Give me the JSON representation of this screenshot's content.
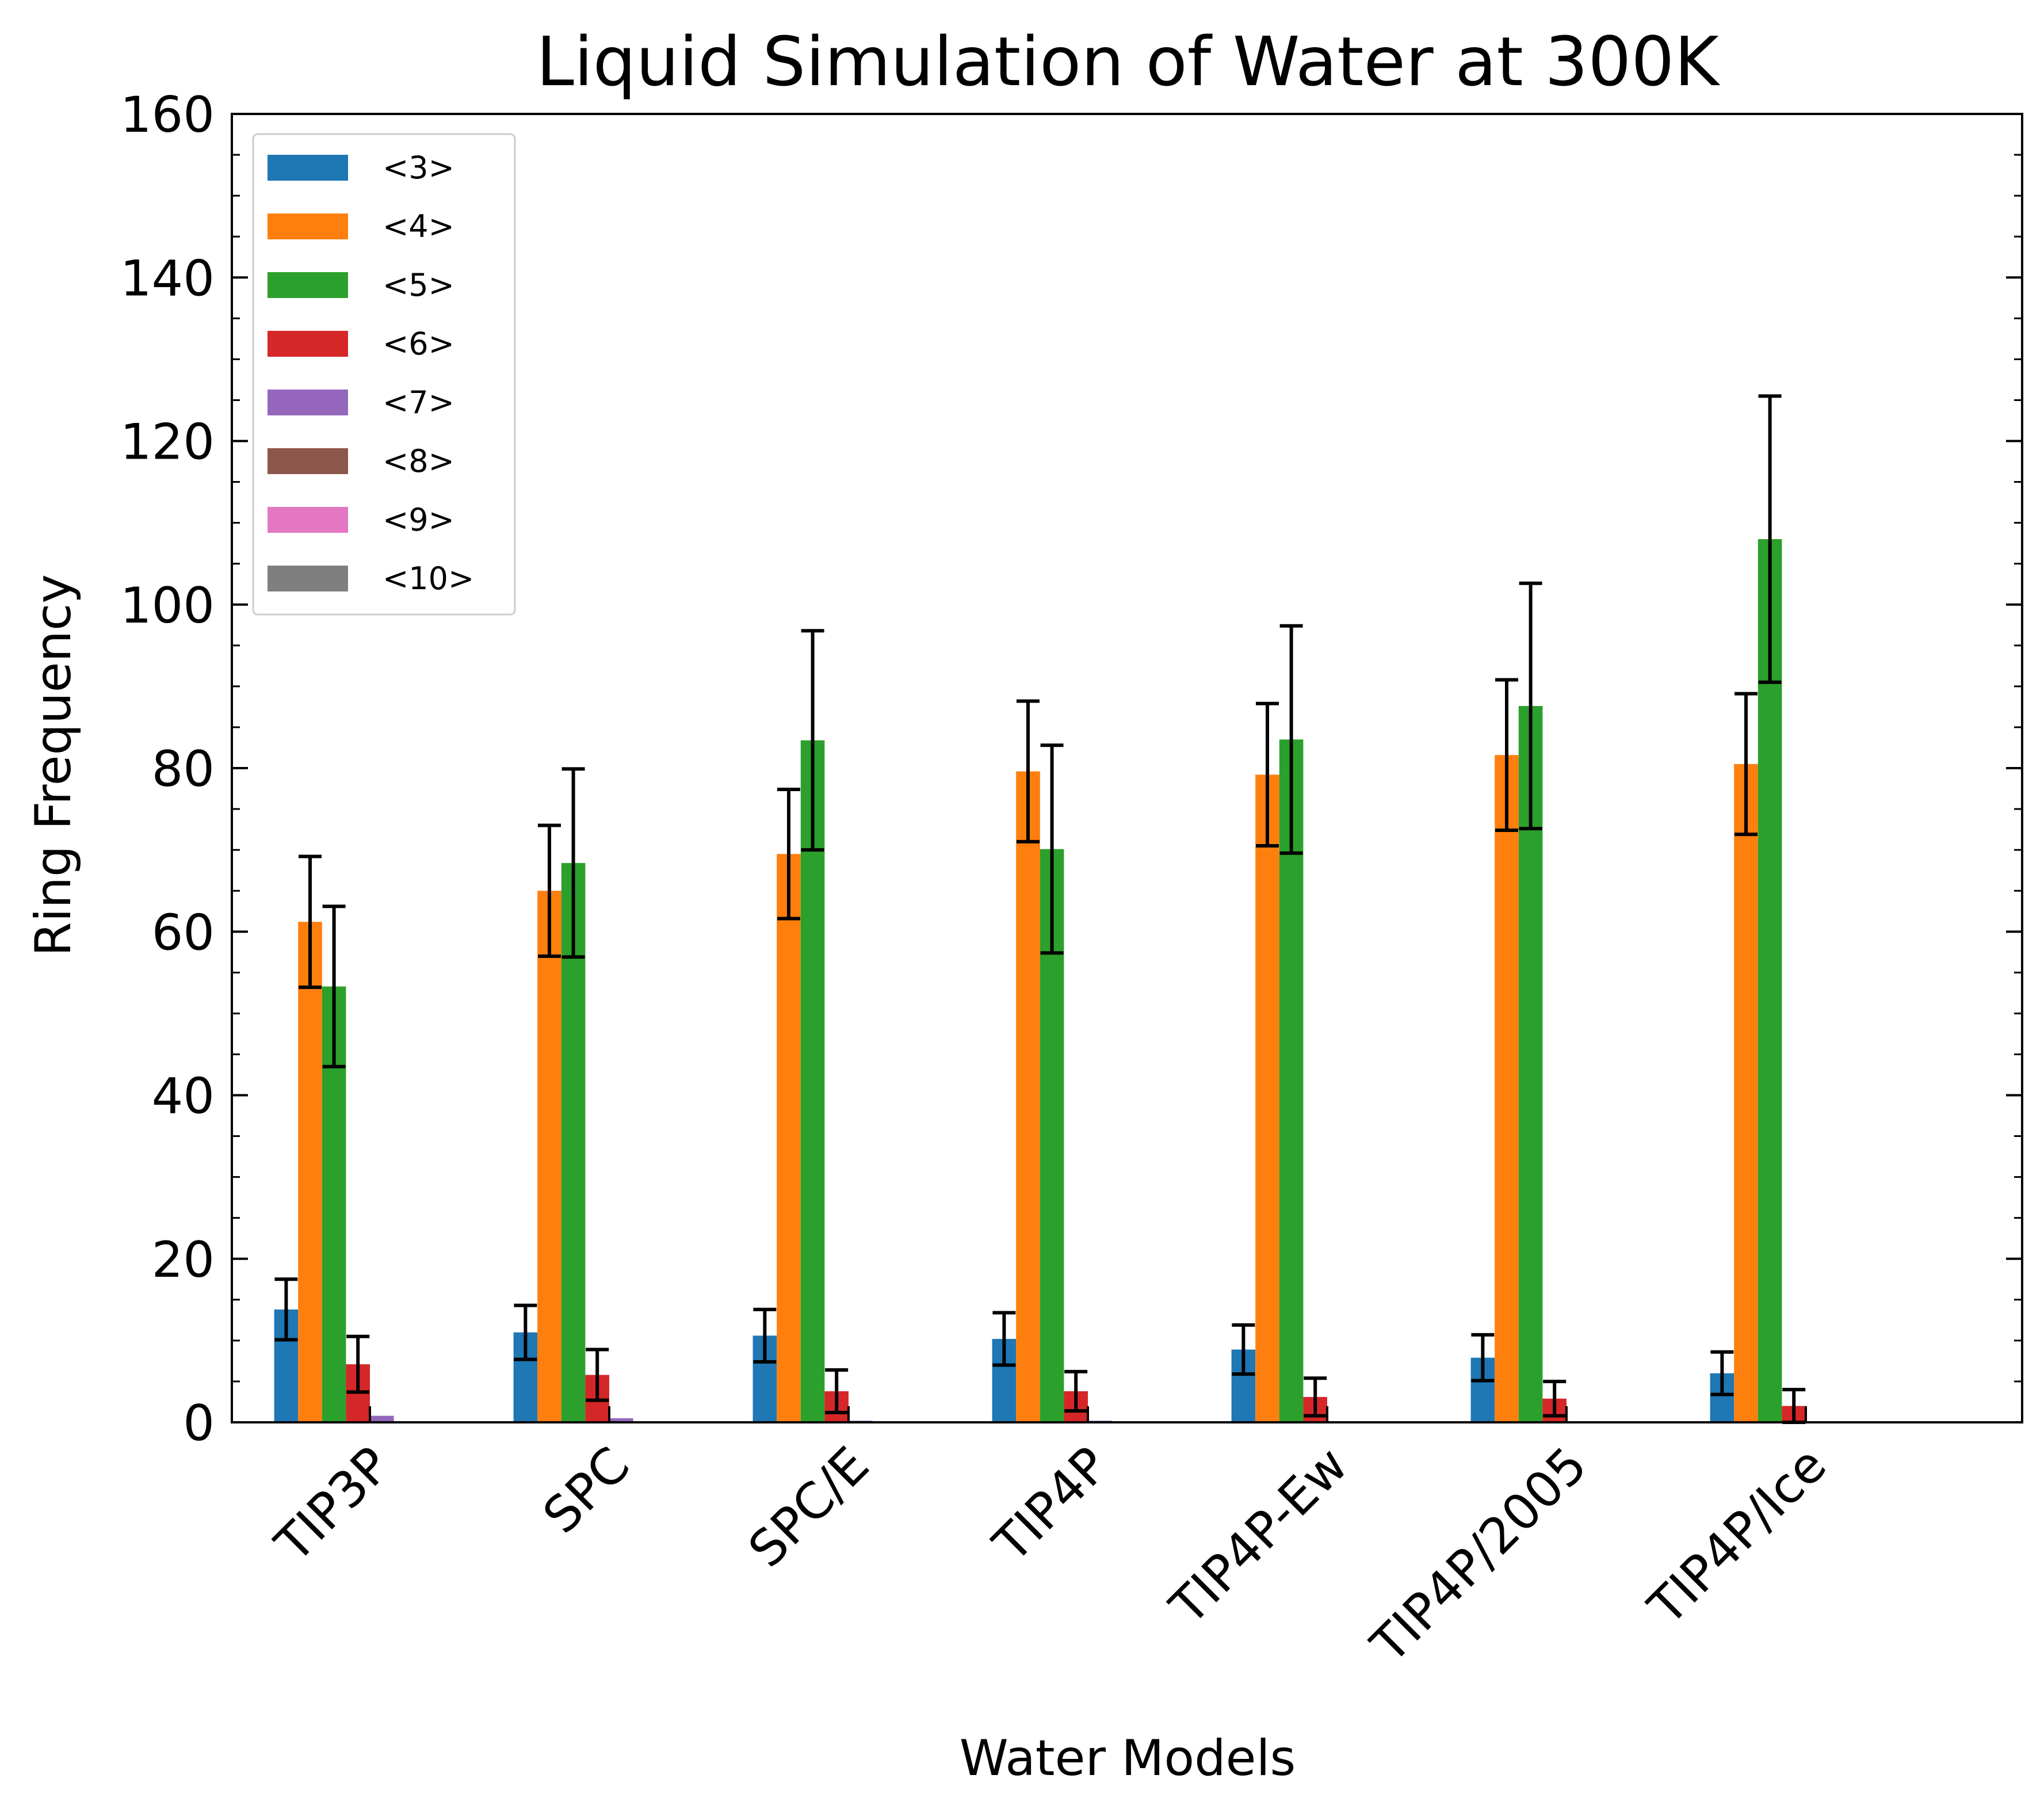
{
  "chart_data": {
    "type": "bar",
    "title": "Liquid Simulation of Water at 300K",
    "xlabel": "Water Models",
    "ylabel": "Ring Frequency",
    "ylim": [
      0,
      160
    ],
    "yticks": [
      0,
      20,
      40,
      60,
      80,
      100,
      120,
      140,
      160
    ],
    "categories": [
      "TIP3P",
      "SPC",
      "SPC/E",
      "TIP4P",
      "TIP4P-Ew",
      "TIP4P/2005",
      "TIP4P/Ice"
    ],
    "legend_position": "top-left",
    "grid": false,
    "series": [
      {
        "name": "<3>",
        "color": "#1f77b4",
        "values": [
          13.8,
          11.0,
          10.6,
          10.2,
          8.9,
          7.9,
          6.0
        ],
        "errors": [
          3.7,
          3.3,
          3.2,
          3.2,
          3.0,
          2.8,
          2.6
        ]
      },
      {
        "name": "<4>",
        "color": "#ff7f0e",
        "values": [
          61.2,
          65.0,
          69.5,
          79.6,
          79.2,
          81.6,
          80.5
        ],
        "errors": [
          8.0,
          8.0,
          7.9,
          8.6,
          8.7,
          9.2,
          8.6
        ]
      },
      {
        "name": "<5>",
        "color": "#2ca02c",
        "values": [
          53.3,
          68.4,
          83.4,
          70.1,
          83.5,
          87.6,
          108.0
        ],
        "errors": [
          9.8,
          11.5,
          13.4,
          12.7,
          13.9,
          15.0,
          17.5
        ]
      },
      {
        "name": "<6>",
        "color": "#d62728",
        "values": [
          7.1,
          5.8,
          3.8,
          3.8,
          3.1,
          2.9,
          2.0
        ],
        "errors": [
          3.4,
          3.1,
          2.6,
          2.4,
          2.3,
          2.1,
          2.0
        ]
      },
      {
        "name": "<7>",
        "color": "#9467bd",
        "values": [
          0.8,
          0.5,
          0.2,
          0.2,
          0.1,
          0.1,
          0.05
        ],
        "errors": [
          0,
          0,
          0,
          0,
          0,
          0,
          0
        ]
      },
      {
        "name": "<8>",
        "color": "#8c564b",
        "values": [
          0.05,
          0.03,
          0.01,
          0.01,
          0.01,
          0.01,
          0.0
        ],
        "errors": [
          0,
          0,
          0,
          0,
          0,
          0,
          0
        ]
      },
      {
        "name": "<9>",
        "color": "#e377c2",
        "values": [
          0,
          0,
          0,
          0,
          0,
          0,
          0
        ],
        "errors": [
          0,
          0,
          0,
          0,
          0,
          0,
          0
        ]
      },
      {
        "name": "<10>",
        "color": "#7f7f7f",
        "values": [
          0,
          0,
          0,
          0,
          0,
          0,
          0
        ],
        "errors": [
          0,
          0,
          0,
          0,
          0,
          0,
          0
        ]
      }
    ]
  }
}
